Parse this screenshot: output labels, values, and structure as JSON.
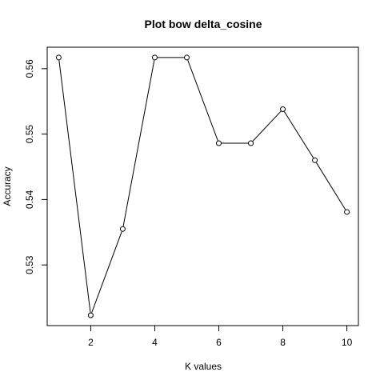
{
  "chart_data": {
    "type": "line",
    "title": "Plot bow delta_cosine",
    "xlabel": "K values",
    "ylabel": "Accuracy",
    "x": [
      1,
      2,
      3,
      4,
      5,
      6,
      7,
      8,
      9,
      10
    ],
    "values": [
      0.5617,
      0.5223,
      0.5355,
      0.5617,
      0.5617,
      0.5486,
      0.5486,
      0.5538,
      0.546,
      0.5381
    ],
    "xlim": [
      0.64,
      10.36
    ],
    "ylim": [
      0.52073,
      0.56328
    ],
    "xticks": [
      2,
      4,
      6,
      8,
      10
    ],
    "yticks": [
      0.53,
      0.54,
      0.55,
      0.56
    ],
    "xtick_labels": [
      "2",
      "4",
      "6",
      "8",
      "10"
    ],
    "ytick_labels": [
      "0.53",
      "0.54",
      "0.55",
      "0.56"
    ],
    "grid": false,
    "marker": "open-circle",
    "line_color": "#000000"
  }
}
